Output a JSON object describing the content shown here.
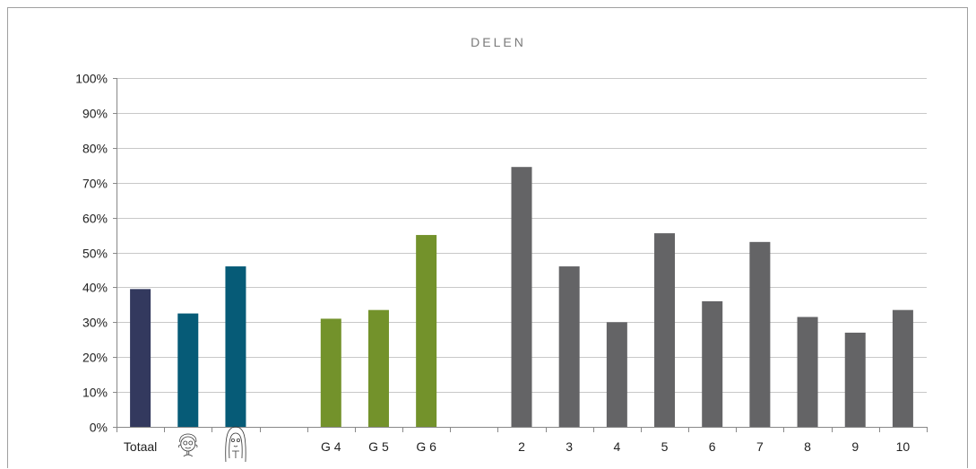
{
  "chart_data": {
    "type": "bar",
    "title": "DELEN",
    "xlabel": "",
    "ylabel": "",
    "ylim": [
      0,
      100
    ],
    "yticks": [
      "0%",
      "10%",
      "20%",
      "30%",
      "40%",
      "50%",
      "60%",
      "70%",
      "80%",
      "90%",
      "100%"
    ],
    "grid": true,
    "categories": [
      {
        "label": "Totaal",
        "value": 39.5,
        "color": "#33395e"
      },
      {
        "label": "",
        "icon": "boy-icon",
        "value": 32.5,
        "color": "#065b77"
      },
      {
        "label": "",
        "icon": "girl-icon",
        "value": 46,
        "color": "#065b77"
      },
      {
        "label": "",
        "value": null,
        "color": ""
      },
      {
        "label": "G 4",
        "value": 31,
        "color": "#73922b"
      },
      {
        "label": "G 5",
        "value": 33.5,
        "color": "#73922b"
      },
      {
        "label": "G 6",
        "value": 55,
        "color": "#73922b"
      },
      {
        "label": "",
        "value": null,
        "color": ""
      },
      {
        "label": "2",
        "value": 74.5,
        "color": "#646466"
      },
      {
        "label": "3",
        "value": 46,
        "color": "#646466"
      },
      {
        "label": "4",
        "value": 30,
        "color": "#646466"
      },
      {
        "label": "5",
        "value": 55.5,
        "color": "#646466"
      },
      {
        "label": "6",
        "value": 36,
        "color": "#646466"
      },
      {
        "label": "7",
        "value": 53,
        "color": "#646466"
      },
      {
        "label": "8",
        "value": 31.5,
        "color": "#646466"
      },
      {
        "label": "9",
        "value": 27,
        "color": "#646466"
      },
      {
        "label": "10",
        "value": 33.5,
        "color": "#646466"
      }
    ]
  }
}
